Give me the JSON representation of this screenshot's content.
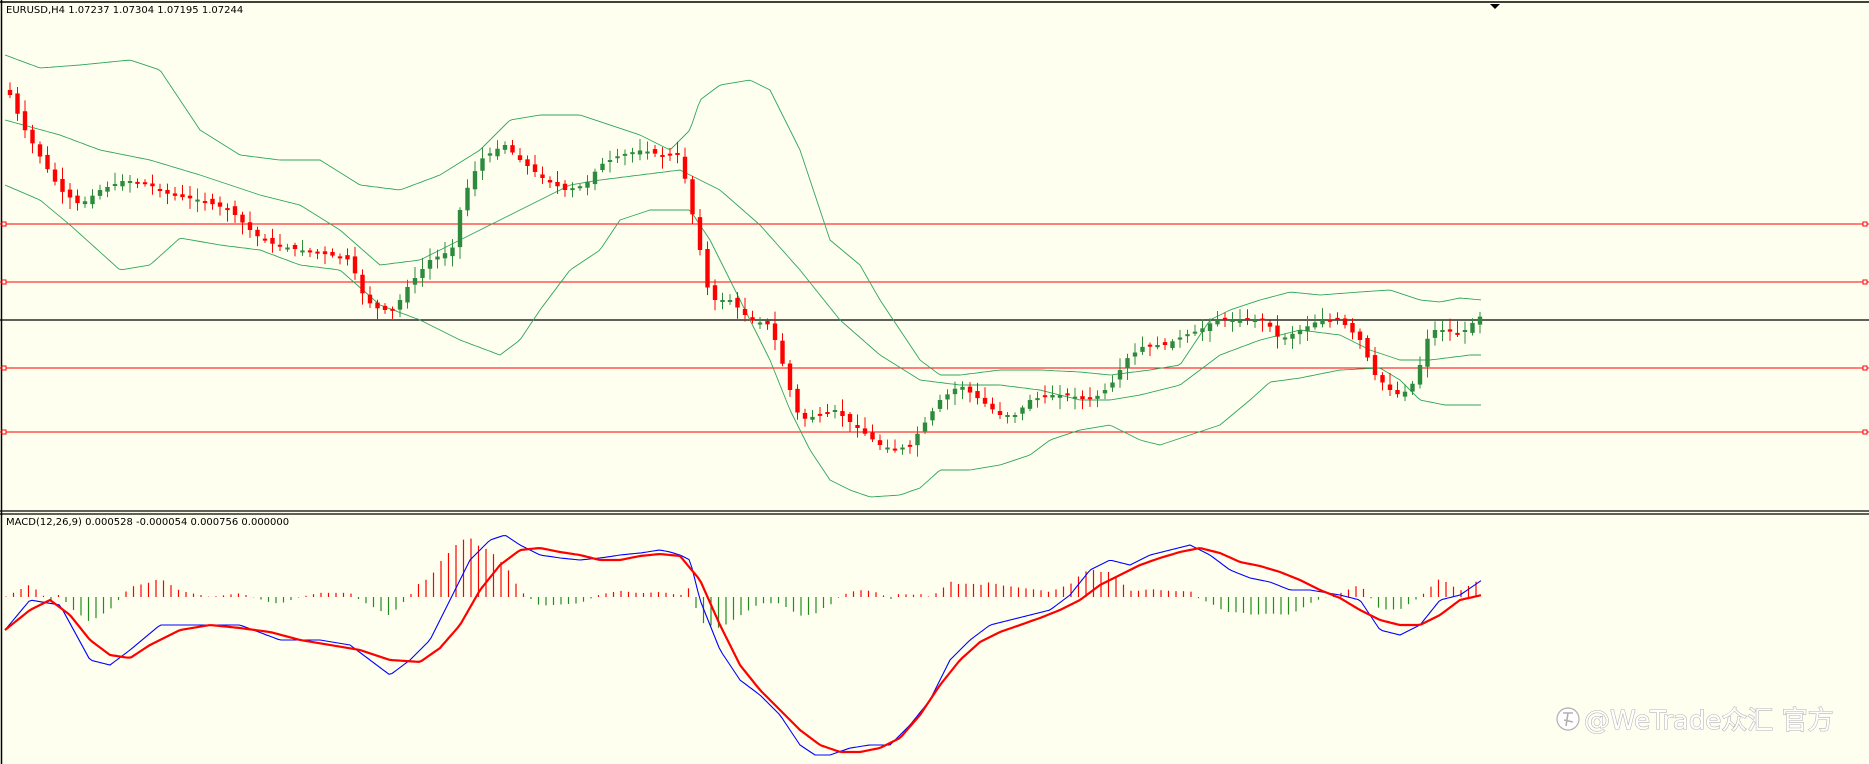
{
  "main_chart": {
    "symbol_tf": "EURUSD,H4",
    "ohlc": [
      "1.07237",
      "1.07304",
      "1.07195",
      "1.07244"
    ],
    "colors": {
      "bull": "#2e8b3e",
      "bear": "#ff0000",
      "bands": "#2ea65a",
      "level_line": "#ff0000",
      "price_line": "#000000"
    }
  },
  "macd": {
    "label": "MACD(12,26,9) 0.000528 -0.000054 0.000756 0.000000",
    "colors": {
      "macd_line": "#0000ff",
      "signal_line": "#ff0000",
      "hist_up": "#ff0000",
      "hist_down": "#228b22"
    }
  },
  "watermark": {
    "text": "@WeTrade众汇 官方",
    "icon": "zhihu-logo-icon"
  }
}
